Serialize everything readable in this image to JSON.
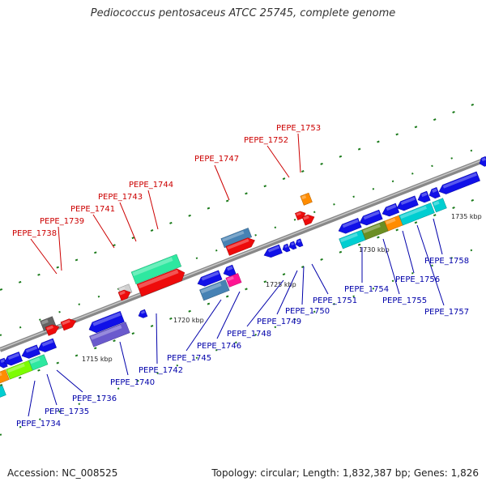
{
  "title": "Pediococcus pentosaceus ATCC 25745, complete genome",
  "accession": "Accession: NC_008525",
  "topology": "Topology: circular; Length: 1,832,387 bp; Genes: 1,826",
  "colors": {
    "forward_label": "#cc0000",
    "reverse_label": "#0000aa",
    "backbone": "#888888",
    "tick_dash": "#1a7a1a"
  },
  "scale_ticks": [
    "1715 kbp",
    "1720 kbp",
    "1725 kbp",
    "1730 kbp",
    "1735 kbp"
  ],
  "genes": [
    {
      "name": "PEPE_1734",
      "strand": "reverse"
    },
    {
      "name": "PEPE_1735",
      "strand": "reverse"
    },
    {
      "name": "PEPE_1736",
      "strand": "reverse"
    },
    {
      "name": "PEPE_1738",
      "strand": "forward"
    },
    {
      "name": "PEPE_1739",
      "strand": "forward"
    },
    {
      "name": "PEPE_1740",
      "strand": "reverse"
    },
    {
      "name": "PEPE_1741",
      "strand": "forward"
    },
    {
      "name": "PEPE_1742",
      "strand": "reverse"
    },
    {
      "name": "PEPE_1743",
      "strand": "forward"
    },
    {
      "name": "PEPE_1744",
      "strand": "forward"
    },
    {
      "name": "PEPE_1745",
      "strand": "reverse"
    },
    {
      "name": "PEPE_1746",
      "strand": "reverse"
    },
    {
      "name": "PEPE_1747",
      "strand": "forward"
    },
    {
      "name": "PEPE_1748",
      "strand": "reverse"
    },
    {
      "name": "PEPE_1749",
      "strand": "reverse"
    },
    {
      "name": "PEPE_1750",
      "strand": "reverse"
    },
    {
      "name": "PEPE_1751",
      "strand": "reverse"
    },
    {
      "name": "PEPE_1752",
      "strand": "forward"
    },
    {
      "name": "PEPE_1753",
      "strand": "forward"
    },
    {
      "name": "PEPE_1754",
      "strand": "reverse"
    },
    {
      "name": "PEPE_1755",
      "strand": "reverse"
    },
    {
      "name": "PEPE_1756",
      "strand": "reverse"
    },
    {
      "name": "PEPE_1757",
      "strand": "reverse"
    },
    {
      "name": "PEPE_1758",
      "strand": "reverse"
    }
  ]
}
